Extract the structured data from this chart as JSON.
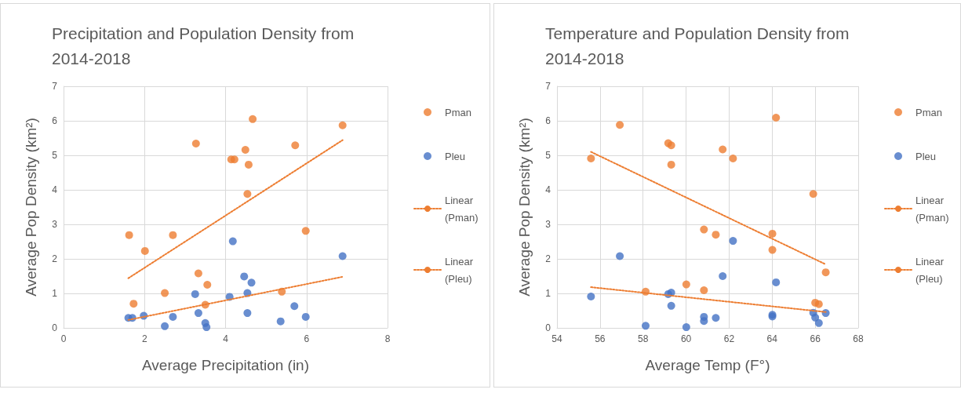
{
  "chart_data": [
    {
      "type": "scatter",
      "title": "Precipitation and Population Density from 2014-2018",
      "xlabel": "Average Precipitation (in)",
      "ylabel": "Average Pop Density (km²)",
      "xlim": [
        0,
        8
      ],
      "xticks": [
        0,
        2,
        4,
        6,
        8
      ],
      "ylim": [
        0,
        7
      ],
      "yticks": [
        0,
        1,
        2,
        3,
        4,
        5,
        6,
        7
      ],
      "grid": true,
      "legend": "right",
      "marker": "circle",
      "series": [
        {
          "name": "Pman",
          "color": "#ed7d31",
          "x": [
            1.62,
            1.73,
            2.01,
            2.5,
            2.7,
            3.27,
            3.33,
            3.5,
            3.55,
            4.14,
            4.22,
            4.49,
            4.54,
            4.57,
            4.67,
            5.39,
            5.72,
            5.98,
            6.89
          ],
          "values": [
            2.69,
            0.7,
            2.23,
            1.01,
            2.69,
            5.34,
            1.58,
            0.67,
            1.25,
            4.88,
            4.88,
            5.16,
            3.88,
            4.73,
            6.05,
            1.05,
            5.29,
            2.81,
            5.87
          ]
        },
        {
          "name": "Pleu",
          "color": "#4472c4",
          "x": [
            1.6,
            1.7,
            1.98,
            2.5,
            2.7,
            3.25,
            3.33,
            3.5,
            3.53,
            4.1,
            4.18,
            4.46,
            4.54,
            4.54,
            4.64,
            5.36,
            5.7,
            5.98,
            6.89
          ],
          "values": [
            0.29,
            0.29,
            0.35,
            0.05,
            0.32,
            0.98,
            0.43,
            0.14,
            0.02,
            0.9,
            2.51,
            1.49,
            1.01,
            0.43,
            1.31,
            0.19,
            0.63,
            0.32,
            2.08
          ]
        },
        {
          "name": "Linear (Pman)",
          "type": "line",
          "marker": "none",
          "line_style": "dotted",
          "color": "#ed7d31",
          "x": [
            1.6,
            6.89
          ],
          "values": [
            1.44,
            5.44
          ]
        },
        {
          "name": "Linear (Pleu)",
          "type": "line",
          "marker": "none",
          "line_style": "dotted",
          "color": "#ed7d31",
          "x": [
            1.6,
            6.89
          ],
          "values": [
            0.23,
            1.48
          ]
        }
      ]
    },
    {
      "type": "scatter",
      "title": "Temperature and Population Density from 2014-2018",
      "xlabel": "Average Temp (F°)",
      "ylabel": "Average Pop Density (km²)",
      "xlim": [
        54,
        68
      ],
      "xticks": [
        54,
        56,
        58,
        60,
        62,
        64,
        66,
        68
      ],
      "ylim": [
        0,
        7
      ],
      "yticks": [
        0,
        1,
        2,
        3,
        4,
        5,
        6,
        7
      ],
      "grid": true,
      "legend": "right",
      "marker": "circle",
      "series": [
        {
          "name": "Pman",
          "color": "#ed7d31",
          "x": [
            55.58,
            56.92,
            59.17,
            59.31,
            59.31,
            61.7,
            62.18,
            64.18,
            65.91,
            60.83,
            61.38,
            64.01,
            64.01,
            60.01,
            58.12,
            60.83,
            66.0,
            66.17,
            66.49
          ],
          "values": [
            4.91,
            5.88,
            5.35,
            5.29,
            4.73,
            5.17,
            4.91,
            6.09,
            3.88,
            2.85,
            2.7,
            2.73,
            2.26,
            1.26,
            1.05,
            1.09,
            0.73,
            0.69,
            1.61
          ]
        },
        {
          "name": "Pleu",
          "color": "#4472c4",
          "x": [
            55.58,
            56.92,
            58.12,
            59.17,
            59.31,
            59.31,
            60.01,
            60.83,
            60.83,
            61.38,
            61.7,
            62.18,
            64.01,
            64.01,
            64.18,
            65.91,
            66.0,
            66.17,
            66.49
          ],
          "values": [
            0.91,
            2.08,
            0.06,
            0.98,
            1.02,
            0.64,
            0.02,
            0.32,
            0.2,
            0.29,
            1.5,
            2.52,
            0.33,
            0.38,
            1.32,
            0.44,
            0.3,
            0.14,
            0.43
          ]
        },
        {
          "name": "Linear (Pman)",
          "type": "line",
          "marker": "none",
          "line_style": "dotted",
          "color": "#ed7d31",
          "x": [
            55.58,
            66.49
          ],
          "values": [
            5.1,
            1.84
          ]
        },
        {
          "name": "Linear (Pleu)",
          "type": "line",
          "marker": "none",
          "line_style": "dotted",
          "color": "#ed7d31",
          "x": [
            55.58,
            66.49
          ],
          "values": [
            1.18,
            0.46
          ]
        }
      ]
    }
  ]
}
